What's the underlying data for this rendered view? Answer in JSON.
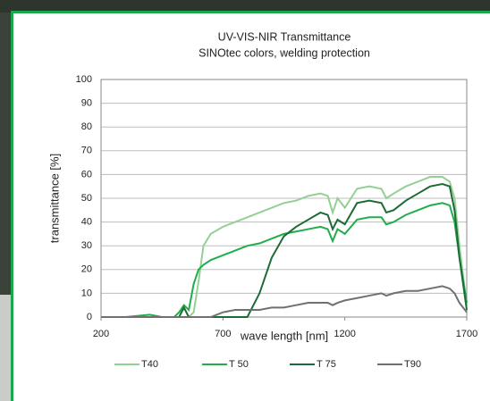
{
  "chart_data": {
    "type": "line",
    "title": "UV-VIS-NIR Transmittance",
    "subtitle": "SINOtec colors, welding protection",
    "x_label": "wave length [nm]",
    "y_label": "transmittance [%]",
    "x": [
      200,
      300,
      400,
      450,
      500,
      520,
      540,
      560,
      580,
      600,
      620,
      650,
      700,
      750,
      800,
      850,
      900,
      950,
      1000,
      1050,
      1100,
      1130,
      1150,
      1170,
      1200,
      1250,
      1300,
      1350,
      1370,
      1400,
      1450,
      1500,
      1550,
      1600,
      1630,
      1650,
      1670,
      1700
    ],
    "series": [
      {
        "name": "T40",
        "color": "#93d093",
        "values": [
          0,
          0,
          0,
          0,
          0,
          0,
          0,
          0,
          2,
          15,
          30,
          35,
          38,
          40,
          42,
          44,
          46,
          48,
          49,
          51,
          52,
          51,
          44,
          50,
          46,
          54,
          55,
          54,
          50,
          52,
          55,
          57,
          59,
          59,
          57,
          50,
          30,
          5
        ]
      },
      {
        "name": "T 50",
        "color": "#1fae4a",
        "values": [
          0,
          0,
          1,
          0,
          0,
          2,
          5,
          3,
          14,
          20,
          22,
          24,
          26,
          28,
          30,
          31,
          33,
          35,
          36,
          37,
          38,
          37,
          32,
          37,
          35,
          41,
          42,
          42,
          39,
          40,
          43,
          45,
          47,
          48,
          47,
          40,
          25,
          6
        ]
      },
      {
        "name": "T 75",
        "color": "#1c6b36",
        "values": [
          0,
          0,
          0,
          0,
          0,
          0,
          4,
          0,
          0,
          0,
          0,
          0,
          0,
          0,
          0,
          10,
          25,
          34,
          38,
          41,
          44,
          43,
          37,
          41,
          39,
          48,
          49,
          48,
          44,
          45,
          49,
          52,
          55,
          56,
          55,
          45,
          25,
          3
        ]
      },
      {
        "name": "T90",
        "color": "#707070",
        "values": [
          0,
          0,
          0,
          0,
          0,
          0,
          0,
          0,
          0,
          0,
          0,
          0,
          2,
          3,
          3,
          3,
          4,
          4,
          5,
          6,
          6,
          6,
          5,
          6,
          7,
          8,
          9,
          10,
          9,
          10,
          11,
          11,
          12,
          13,
          12,
          10,
          6,
          2
        ]
      }
    ],
    "xlim": [
      200,
      1700
    ],
    "xticks": [
      200,
      700,
      1200,
      1700
    ],
    "ylim": [
      0,
      100
    ],
    "yticks": [
      0,
      10,
      20,
      30,
      40,
      50,
      60,
      70,
      80,
      90,
      100
    ],
    "grid": true
  }
}
